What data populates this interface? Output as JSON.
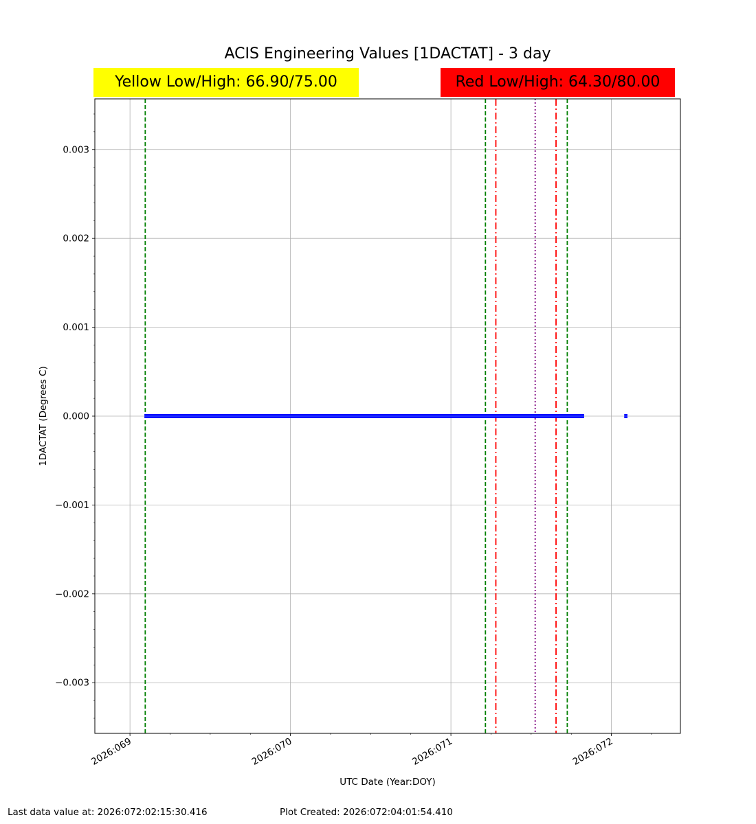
{
  "title": "ACIS Engineering Values [1DACTAT] - 3 day",
  "limits": {
    "yellow_label": "Yellow Low/High: 66.90/75.00",
    "yellow_color": "#ffff00",
    "red_label": "Red Low/High: 64.30/80.00",
    "red_color": "#ff0000"
  },
  "footer": {
    "last_data": "Last data value at: 2026:072:02:15:30.416",
    "plot_created": "Plot Created: 2026:072:04:01:54.410"
  },
  "chart_data": {
    "type": "line",
    "title": "ACIS Engineering Values [1DACTAT] - 3 day",
    "xlabel": "UTC Date (Year:DOY)",
    "ylabel": "1DACTAT (Degrees C)",
    "xlim": [
      2026068.781,
      2026072.43
    ],
    "ylim": [
      -0.00357,
      0.00357
    ],
    "x_ticks": [
      {
        "value": 2026069.0,
        "label": "2026:069"
      },
      {
        "value": 2026070.0,
        "label": "2026:070"
      },
      {
        "value": 2026071.0,
        "label": "2026:071"
      },
      {
        "value": 2026072.0,
        "label": "2026:072"
      }
    ],
    "x_minor_step": 0.25,
    "y_ticks": [
      {
        "value": 0.003,
        "label": "0.003"
      },
      {
        "value": 0.002,
        "label": "0.002"
      },
      {
        "value": 0.001,
        "label": "0.001"
      },
      {
        "value": 0.0,
        "label": "0.000"
      },
      {
        "value": -0.001,
        "label": "−0.001"
      },
      {
        "value": -0.002,
        "label": "−0.002"
      },
      {
        "value": -0.003,
        "label": "−0.003"
      }
    ],
    "y_minor_step": 0.0002,
    "grid": true,
    "series": [
      {
        "color": "#0000ff",
        "segments": [
          {
            "x_start": 2026069.09,
            "x_end": 2026071.83,
            "y": 0.0
          },
          {
            "x_start": 2026072.08,
            "x_end": 2026072.1,
            "y": 0.0
          }
        ]
      }
    ],
    "vertical_lines": [
      {
        "x": 2026069.095,
        "color": "#008000",
        "style": "dashed"
      },
      {
        "x": 2026071.215,
        "color": "#008000",
        "style": "dashed"
      },
      {
        "x": 2026071.28,
        "color": "#ff0000",
        "style": "dashdot"
      },
      {
        "x": 2026071.525,
        "color": "#800080",
        "style": "dotted"
      },
      {
        "x": 2026071.655,
        "color": "#ff0000",
        "style": "dashdot"
      },
      {
        "x": 2026071.725,
        "color": "#008000",
        "style": "dashed"
      }
    ]
  }
}
